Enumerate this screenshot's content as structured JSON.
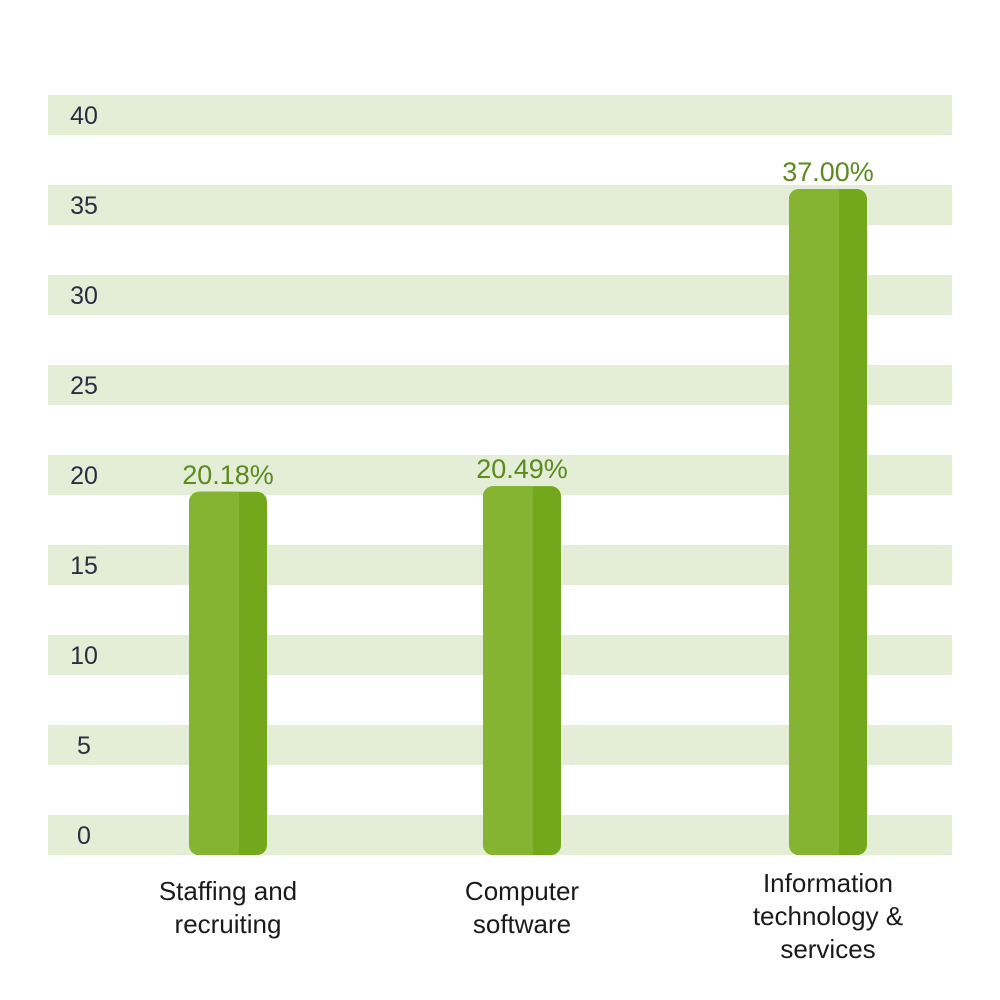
{
  "chart_data": {
    "type": "bar",
    "categories": [
      [
        "Staffing and",
        "recruiting"
      ],
      [
        "Computer",
        "software"
      ],
      [
        "Information",
        "technology &",
        "services"
      ]
    ],
    "values": [
      20.18,
      20.49,
      37.0
    ],
    "data_labels": [
      "20.18%",
      "20.49%",
      "37.00%"
    ],
    "yticks": [
      "0",
      "5",
      "10",
      "15",
      "20",
      "25",
      "30",
      "35",
      "40"
    ],
    "ylim": [
      0,
      40
    ],
    "title": "",
    "xlabel": "",
    "ylabel": "",
    "grid": "alternating horizontal bands",
    "legend": "none",
    "colors": {
      "band": "#e4eed6",
      "bar_light": "#84b431",
      "bar_dark": "#74a81c",
      "data_label": "#5b8a1e",
      "tick_label": "#2b2d42",
      "category_label": "#1a1a1a"
    }
  }
}
